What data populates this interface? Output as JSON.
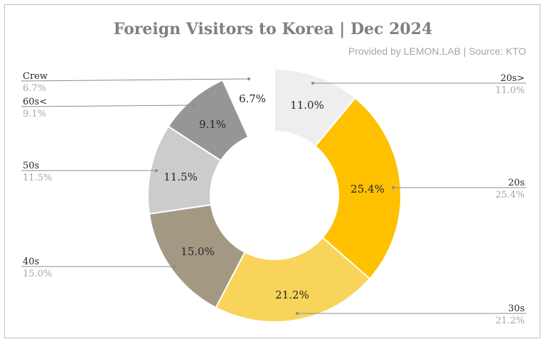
{
  "title": "Foreign Visitors to Korea | Dec 2024",
  "subtitle": "Provided by LEMON.LAB | Source: KTO",
  "chart_data": {
    "type": "pie",
    "donut": true,
    "title": "Foreign Visitors to Korea | Dec 2024",
    "subtitle": "Provided by LEMON.LAB | Source: KTO",
    "slices": [
      {
        "name": "20s>",
        "value": 11.0,
        "label": "11.0%",
        "ext_value": "11.0%",
        "color": "#eeeeee",
        "exploded": false
      },
      {
        "name": "20s",
        "value": 25.4,
        "label": "25.4%",
        "ext_value": "25.4%",
        "color": "#ffc000",
        "exploded": false
      },
      {
        "name": "30s",
        "value": 21.2,
        "label": "21.2%",
        "ext_value": "21.2%",
        "color": "#f8d45a",
        "exploded": false
      },
      {
        "name": "40s",
        "value": 15.0,
        "label": "15.0%",
        "ext_value": "15.0%",
        "color": "#a39983",
        "exploded": false
      },
      {
        "name": "50s",
        "value": 11.5,
        "label": "11.5%",
        "ext_value": "11.5%",
        "color": "#cccccc",
        "exploded": false
      },
      {
        "name": "60s<",
        "value": 9.1,
        "label": "9.1%",
        "ext_value": "9.1%",
        "color": "#969696",
        "exploded": false
      },
      {
        "name": "Crew",
        "value": 6.7,
        "label": "6.7%",
        "ext_value": "6.7%",
        "color": "#ffffff",
        "exploded": true
      }
    ],
    "legend": "none"
  }
}
